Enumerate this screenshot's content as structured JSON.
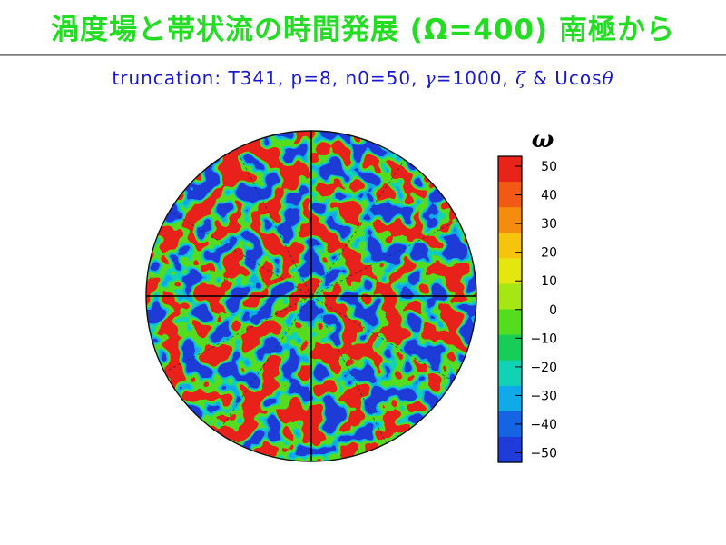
{
  "title": "渦度場と帯状流の時間発展  (Ω=400)  南極から",
  "subtitle": {
    "text": "truncation:  T341,  p=8,  n0=50,  ",
    "gamma_symbol": "γ",
    "gamma_value": "=1000,  ",
    "zeta_symbol": "ζ",
    "amp": "  &  Ucos",
    "theta_symbol": "θ"
  },
  "colorbar": {
    "label": "ω",
    "ticks": [
      "50",
      "40",
      "30",
      "20",
      "10",
      "0",
      "−10",
      "−20",
      "−30",
      "−40",
      "−50"
    ],
    "colors": [
      "#e8231a",
      "#f05a14",
      "#f68c0f",
      "#f6c40c",
      "#e4e60e",
      "#a6e614",
      "#56dc1e",
      "#18cc58",
      "#12d2b6",
      "#10aae8",
      "#1464e4",
      "#1f3cd8"
    ]
  },
  "globe": {
    "view": "south-pole",
    "field": "vorticity",
    "palette": [
      "#1f3cd8",
      "#10aae8",
      "#12d2b6",
      "#56dc1e",
      "#e4e60e",
      "#e8231a"
    ]
  }
}
